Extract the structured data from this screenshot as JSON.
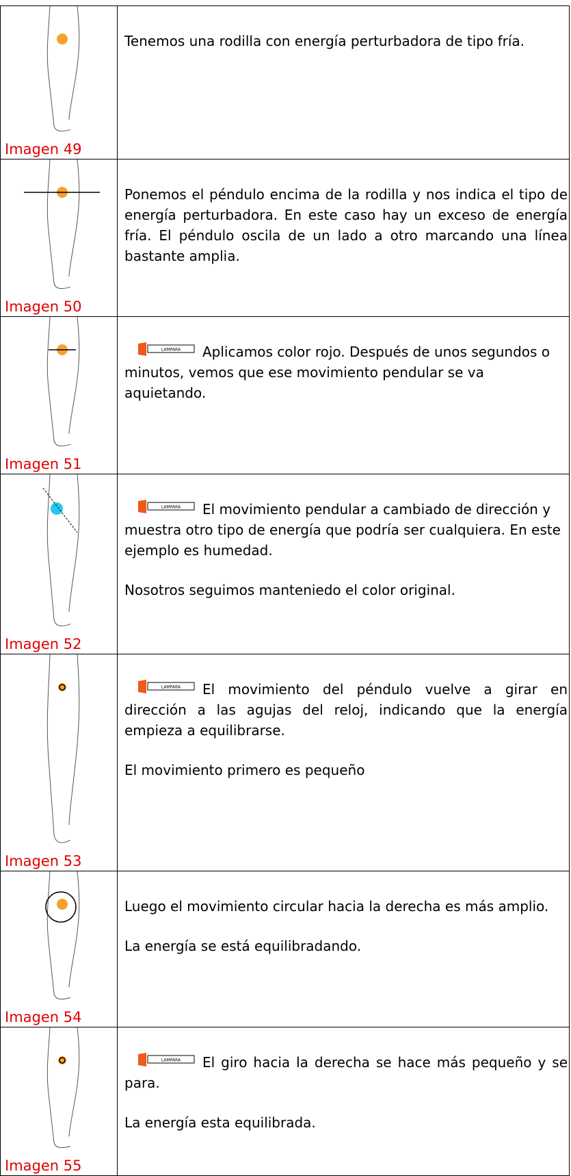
{
  "lamp_label": "LAMPARA",
  "rows": [
    {
      "image_label": "Imagen 49",
      "paragraphs": [
        "Tenemos una rodilla con energía perturbadora de tipo fría."
      ]
    },
    {
      "image_label": "Imagen 50",
      "paragraphs": [
        "Ponemos el péndulo encima de la rodilla y nos indica el tipo de energía perturbadora. En este caso hay un exceso de energía fría. El péndulo oscila de un lado a otro marcando una línea bastante amplia."
      ]
    },
    {
      "image_label": "Imagen 51",
      "paragraphs": [
        "Aplicamos color rojo. Después de unos segundos o minutos, vemos que ese movimiento pendular se va aquietando."
      ]
    },
    {
      "image_label": "Imagen 52",
      "paragraphs": [
        "El movimiento pendular a cambiado de dirección y muestra otro tipo de energía que podría ser cualquiera. En este ejemplo es humedad.",
        "Nosotros seguimos manteniedo el color original."
      ]
    },
    {
      "image_label": "Imagen 53",
      "paragraphs": [
        "El movimiento del péndulo vuelve a girar en dirección a las agujas del reloj, indicando que la energía empieza a equilibrarse.",
        "El movimiento primero es pequeño"
      ]
    },
    {
      "image_label": "Imagen 54",
      "paragraphs": [
        "Luego el movimiento circular hacia la derecha es más amplio.",
        "La energía se está equilibradando."
      ]
    },
    {
      "image_label": "Imagen 55",
      "paragraphs": [
        "El giro hacia la derecha se hace más pequeño y se para.",
        "La energía esta equilibrada."
      ]
    }
  ]
}
